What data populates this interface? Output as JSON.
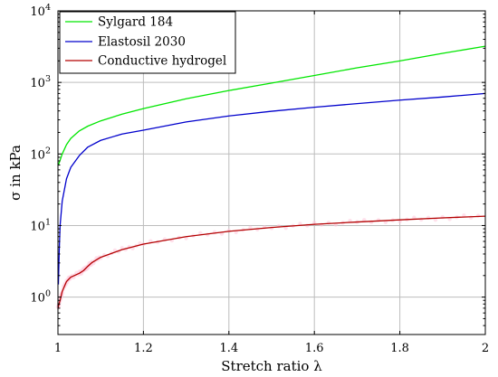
{
  "chart_data": {
    "type": "line",
    "xlabel": "Stretch ratio λ",
    "ylabel": "σ in kPa",
    "xlim": [
      1,
      2
    ],
    "ylim": [
      0.3,
      10000
    ],
    "yscale": "log",
    "grid": true,
    "legend_position": "top-left",
    "x_ticks": [
      "1",
      "1.2",
      "1.4",
      "1.6",
      "1.8",
      "2"
    ],
    "x_tick_values": [
      1,
      1.2,
      1.4,
      1.6,
      1.8,
      2
    ],
    "y_ticks": [
      {
        "value": 1,
        "base": "10",
        "exp": "0"
      },
      {
        "value": 10,
        "base": "10",
        "exp": "1"
      },
      {
        "value": 100,
        "base": "10",
        "exp": "2"
      },
      {
        "value": 1000,
        "base": "10",
        "exp": "3"
      },
      {
        "value": 10000,
        "base": "10",
        "exp": "4"
      }
    ],
    "series": [
      {
        "name": "Sylgard 184",
        "color": "#00e600",
        "x": [
          1.001,
          1.005,
          1.01,
          1.02,
          1.03,
          1.05,
          1.07,
          1.1,
          1.15,
          1.2,
          1.3,
          1.4,
          1.5,
          1.6,
          1.7,
          1.8,
          1.9,
          2.0
        ],
        "y": [
          70,
          82,
          100,
          135,
          165,
          210,
          245,
          290,
          360,
          430,
          590,
          770,
          980,
          1250,
          1600,
          2000,
          2550,
          3200
        ]
      },
      {
        "name": "Elastosil 2030",
        "color": "#0000cc",
        "x": [
          1.001,
          1.003,
          1.005,
          1.01,
          1.02,
          1.03,
          1.05,
          1.07,
          1.1,
          1.15,
          1.2,
          1.3,
          1.4,
          1.5,
          1.6,
          1.7,
          1.8,
          1.9,
          2.0
        ],
        "y": [
          1.5,
          4.5,
          10,
          22,
          45,
          65,
          95,
          125,
          155,
          190,
          215,
          280,
          340,
          395,
          450,
          505,
          565,
          625,
          700
        ]
      },
      {
        "name": "Conductive hydrogel",
        "color": "#b30000",
        "x": [
          1.0,
          1.005,
          1.01,
          1.02,
          1.03,
          1.05,
          1.06,
          1.07,
          1.08,
          1.1,
          1.15,
          1.2,
          1.3,
          1.4,
          1.5,
          1.6,
          1.7,
          1.8,
          1.9,
          2.0
        ],
        "y": [
          0.7,
          0.9,
          1.2,
          1.65,
          1.9,
          2.15,
          2.35,
          2.7,
          3.05,
          3.6,
          4.6,
          5.5,
          7.0,
          8.3,
          9.4,
          10.4,
          11.2,
          12.0,
          12.8,
          13.5
        ]
      }
    ]
  }
}
